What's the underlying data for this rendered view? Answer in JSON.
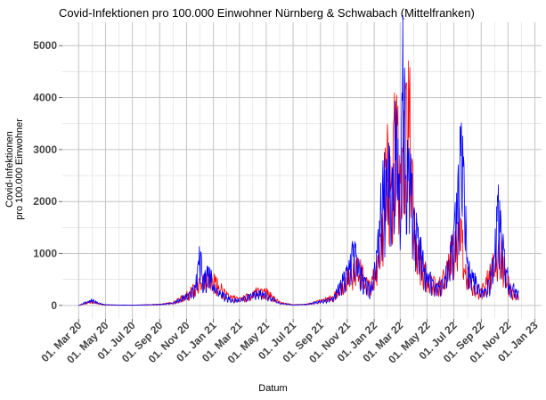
{
  "chart_data": {
    "type": "line",
    "title": "Covid-Infektionen pro 100.000 Einwohner Nürnberg & Schwabach (Mittelfranken)",
    "xlabel": "Datum",
    "ylabel_lines": [
      "Covid-Infektionen",
      "pro 100.000 Einwohner"
    ],
    "x_tick_labels": [
      "01. Mar 20",
      "01. May 20",
      "01. Jul 20",
      "01. Sep 20",
      "01. Nov 20",
      "01. Jan 21",
      "01. Mar 21",
      "01. May 21",
      "01. Jul 21",
      "01. Sep 21",
      "01. Nov 21",
      "01. Jan 22",
      "01. Mar 22",
      "01. May 22",
      "01. Jul 22",
      "01. Sep 22",
      "01. Nov 22",
      "01. Jan 23"
    ],
    "x_ticks": [
      "2020-03-01",
      "2020-05-01",
      "2020-07-01",
      "2020-09-01",
      "2020-11-01",
      "2021-01-01",
      "2021-03-01",
      "2021-05-01",
      "2021-07-01",
      "2021-09-01",
      "2021-11-01",
      "2022-01-01",
      "2022-03-01",
      "2022-05-01",
      "2022-07-01",
      "2022-09-01",
      "2022-11-01",
      "2023-01-01"
    ],
    "y_ticks": [
      0,
      1000,
      2000,
      3000,
      4000,
      5000
    ],
    "y_tick_labels": [
      "0",
      "1000",
      "2000",
      "3000",
      "4000",
      "5000"
    ],
    "xlim": [
      "2020-01-24",
      "2023-01-16"
    ],
    "ylim": [
      -260,
      5450
    ],
    "grid": true,
    "series": [
      {
        "color": "#ff0000",
        "points": [
          [
            "2020-03-01",
            0
          ],
          [
            "2020-03-20",
            60
          ],
          [
            "2020-04-01",
            90
          ],
          [
            "2020-04-15",
            40
          ],
          [
            "2020-05-01",
            10
          ],
          [
            "2020-07-01",
            5
          ],
          [
            "2020-09-01",
            25
          ],
          [
            "2020-10-01",
            60
          ],
          [
            "2020-11-01",
            220
          ],
          [
            "2020-11-20",
            380
          ],
          [
            "2020-12-05",
            480
          ],
          [
            "2020-12-20",
            600
          ],
          [
            "2021-01-01",
            550
          ],
          [
            "2021-01-15",
            400
          ],
          [
            "2021-02-01",
            220
          ],
          [
            "2021-03-01",
            130
          ],
          [
            "2021-03-20",
            200
          ],
          [
            "2021-04-10",
            300
          ],
          [
            "2021-04-25",
            350
          ],
          [
            "2021-05-10",
            220
          ],
          [
            "2021-06-01",
            60
          ],
          [
            "2021-07-01",
            15
          ],
          [
            "2021-08-01",
            30
          ],
          [
            "2021-09-01",
            100
          ],
          [
            "2021-10-01",
            180
          ],
          [
            "2021-11-01",
            600
          ],
          [
            "2021-11-20",
            850
          ],
          [
            "2021-12-05",
            700
          ],
          [
            "2021-12-20",
            400
          ],
          [
            "2022-01-05",
            700
          ],
          [
            "2022-01-20",
            1800
          ],
          [
            "2022-02-01",
            3500
          ],
          [
            "2022-02-10",
            2600
          ],
          [
            "2022-02-20",
            4300
          ],
          [
            "2022-03-01",
            2200
          ],
          [
            "2022-03-10",
            3400
          ],
          [
            "2022-03-20",
            4800
          ],
          [
            "2022-03-28",
            2500
          ],
          [
            "2022-04-05",
            1500
          ],
          [
            "2022-04-20",
            900
          ],
          [
            "2022-05-01",
            600
          ],
          [
            "2022-06-01",
            450
          ],
          [
            "2022-06-20",
            900
          ],
          [
            "2022-07-01",
            1400
          ],
          [
            "2022-07-15",
            1800
          ],
          [
            "2022-07-25",
            900
          ],
          [
            "2022-08-10",
            400
          ],
          [
            "2022-09-01",
            300
          ],
          [
            "2022-10-01",
            900
          ],
          [
            "2022-10-15",
            1300
          ],
          [
            "2022-10-25",
            700
          ],
          [
            "2022-11-10",
            280
          ],
          [
            "2022-11-25",
            180
          ]
        ]
      },
      {
        "color": "#0000ff",
        "points": [
          [
            "2020-03-01",
            0
          ],
          [
            "2020-03-20",
            80
          ],
          [
            "2020-04-01",
            110
          ],
          [
            "2020-04-15",
            50
          ],
          [
            "2020-05-01",
            15
          ],
          [
            "2020-07-01",
            5
          ],
          [
            "2020-09-01",
            20
          ],
          [
            "2020-10-01",
            50
          ],
          [
            "2020-11-01",
            200
          ],
          [
            "2020-11-20",
            350
          ],
          [
            "2020-12-01",
            1050
          ],
          [
            "2020-12-10",
            500
          ],
          [
            "2020-12-20",
            830
          ],
          [
            "2021-01-01",
            400
          ],
          [
            "2021-01-20",
            250
          ],
          [
            "2021-02-10",
            120
          ],
          [
            "2021-03-01",
            110
          ],
          [
            "2021-03-20",
            180
          ],
          [
            "2021-04-10",
            260
          ],
          [
            "2021-04-25",
            280
          ],
          [
            "2021-05-10",
            180
          ],
          [
            "2021-06-01",
            50
          ],
          [
            "2021-07-01",
            10
          ],
          [
            "2021-08-01",
            25
          ],
          [
            "2021-09-01",
            80
          ],
          [
            "2021-10-01",
            160
          ],
          [
            "2021-11-01",
            700
          ],
          [
            "2021-11-15",
            1200
          ],
          [
            "2021-11-25",
            850
          ],
          [
            "2021-12-10",
            500
          ],
          [
            "2021-12-25",
            300
          ],
          [
            "2022-01-05",
            900
          ],
          [
            "2022-01-20",
            2400
          ],
          [
            "2022-02-01",
            3000
          ],
          [
            "2022-02-10",
            2000
          ],
          [
            "2022-02-20",
            3800
          ],
          [
            "2022-03-01",
            1800
          ],
          [
            "2022-03-08",
            5250
          ],
          [
            "2022-03-15",
            2500
          ],
          [
            "2022-03-22",
            3500
          ],
          [
            "2022-04-01",
            1800
          ],
          [
            "2022-04-15",
            1200
          ],
          [
            "2022-05-01",
            600
          ],
          [
            "2022-06-01",
            400
          ],
          [
            "2022-06-20",
            800
          ],
          [
            "2022-07-01",
            1500
          ],
          [
            "2022-07-10",
            2400
          ],
          [
            "2022-07-20",
            3350
          ],
          [
            "2022-08-01",
            800
          ],
          [
            "2022-08-20",
            500
          ],
          [
            "2022-09-05",
            250
          ],
          [
            "2022-09-20",
            500
          ],
          [
            "2022-10-01",
            1100
          ],
          [
            "2022-10-10",
            2000
          ],
          [
            "2022-10-20",
            1200
          ],
          [
            "2022-11-05",
            400
          ],
          [
            "2022-11-25",
            300
          ]
        ]
      }
    ]
  }
}
